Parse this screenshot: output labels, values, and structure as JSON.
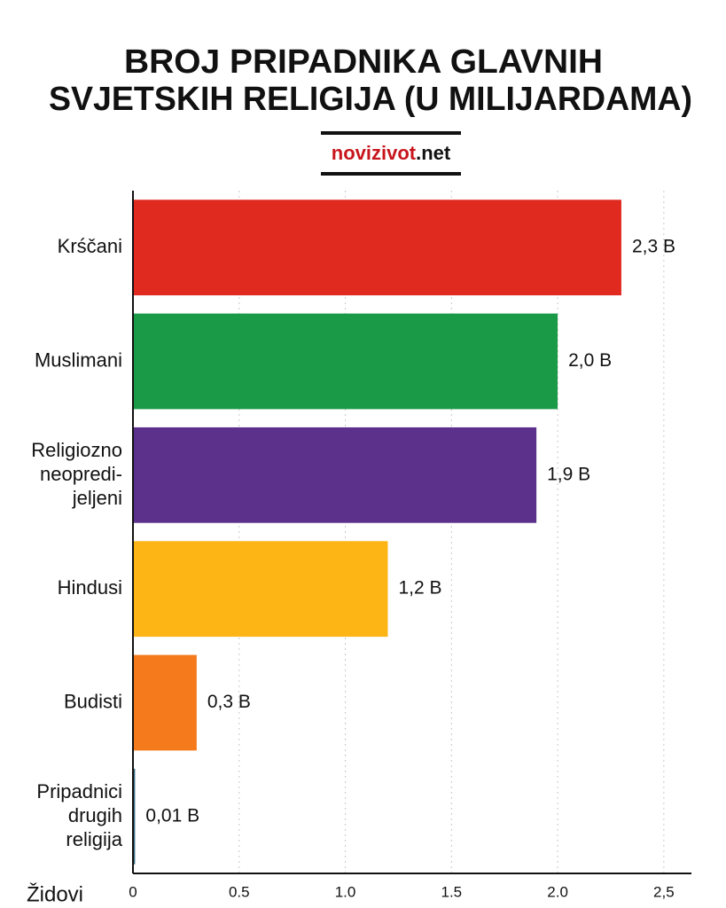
{
  "chart_data": {
    "type": "hbar",
    "title_lines": [
      "BROJ PRIPADNIKA GLAVNIH",
      "SVJETSKIH RELIGIJA (U MILIJARDAMA)"
    ],
    "source_parts": [
      "novizivot",
      ".net"
    ],
    "categories": [
      "Krśčani",
      "Muslimani",
      "Religiozno\nneopredi-\njeljeni",
      "Hindusi",
      "Budisti",
      "Pripadnici\ndrugih\nreligija"
    ],
    "values": [
      2.3,
      2.0,
      1.9,
      1.2,
      0.3,
      0.01
    ],
    "value_labels": [
      "2,3 B",
      "2,0 B",
      "1,9 B",
      "1,2 B",
      "0,3 B",
      "0,01 B"
    ],
    "colors": [
      "#e02a20",
      "#1a9a46",
      "#5c318c",
      "#fdb515",
      "#f47a1b",
      "#3b6e86"
    ],
    "annotation": "Židovi",
    "xlim": [
      0,
      2.63
    ],
    "xticks": [
      0,
      0.5,
      {
        "value": 1,
        "label": "1.0"
      },
      1.5,
      {
        "value": 2,
        "label": "2.0"
      },
      {
        "value": 2.5,
        "label": "2,5"
      }
    ],
    "grid": true
  }
}
